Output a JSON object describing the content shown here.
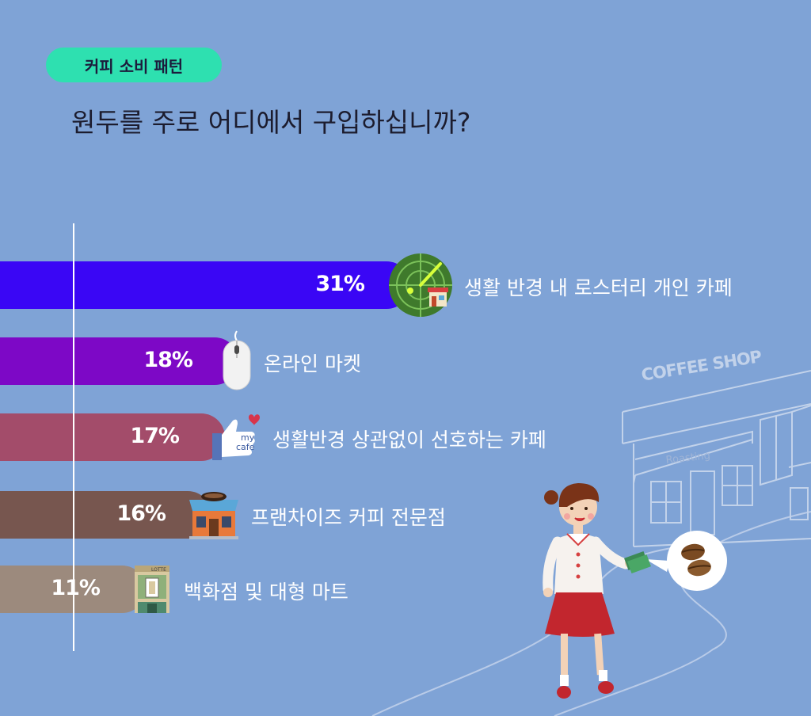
{
  "header": {
    "tag": "커피 소비 패턴",
    "question": "원두를 주로 어디에서 구입하십니까?"
  },
  "colors": {
    "background": "#7fa3d6",
    "tag": "#2ee0b0",
    "bars": [
      "#3a06f5",
      "#7d08c6",
      "#a34c6a",
      "#77564f",
      "#9c8a7d"
    ]
  },
  "chart_data": {
    "type": "bar",
    "orientation": "horizontal",
    "categories": [
      "생활 반경 내 로스터리 개인 카페",
      "온라인 마켓",
      "생활반경 상관없이 선호하는 카페",
      "프랜차이즈 커피 전문점",
      "백화점 및 대형 마트"
    ],
    "values": [
      31,
      18,
      17,
      16,
      11
    ],
    "value_labels": [
      "31%",
      "18%",
      "17%",
      "16%",
      "11%"
    ],
    "icons": [
      "radar-map-icon",
      "mouse-icon",
      "thumbs-up-mycafe-icon",
      "coffee-shop-icon",
      "department-store-icon"
    ]
  },
  "illustration": {
    "shop_sign": "COFFEE SHOP",
    "awning": "Roasting",
    "bubble_icon": "coffee-bean-icon",
    "speech_bubble": "coffee-beans",
    "figure": "woman-holding-money",
    "icon_sticker": {
      "thumb_text_1": "my",
      "thumb_text_2": "cafe",
      "building_sign": "LOTTE"
    }
  }
}
